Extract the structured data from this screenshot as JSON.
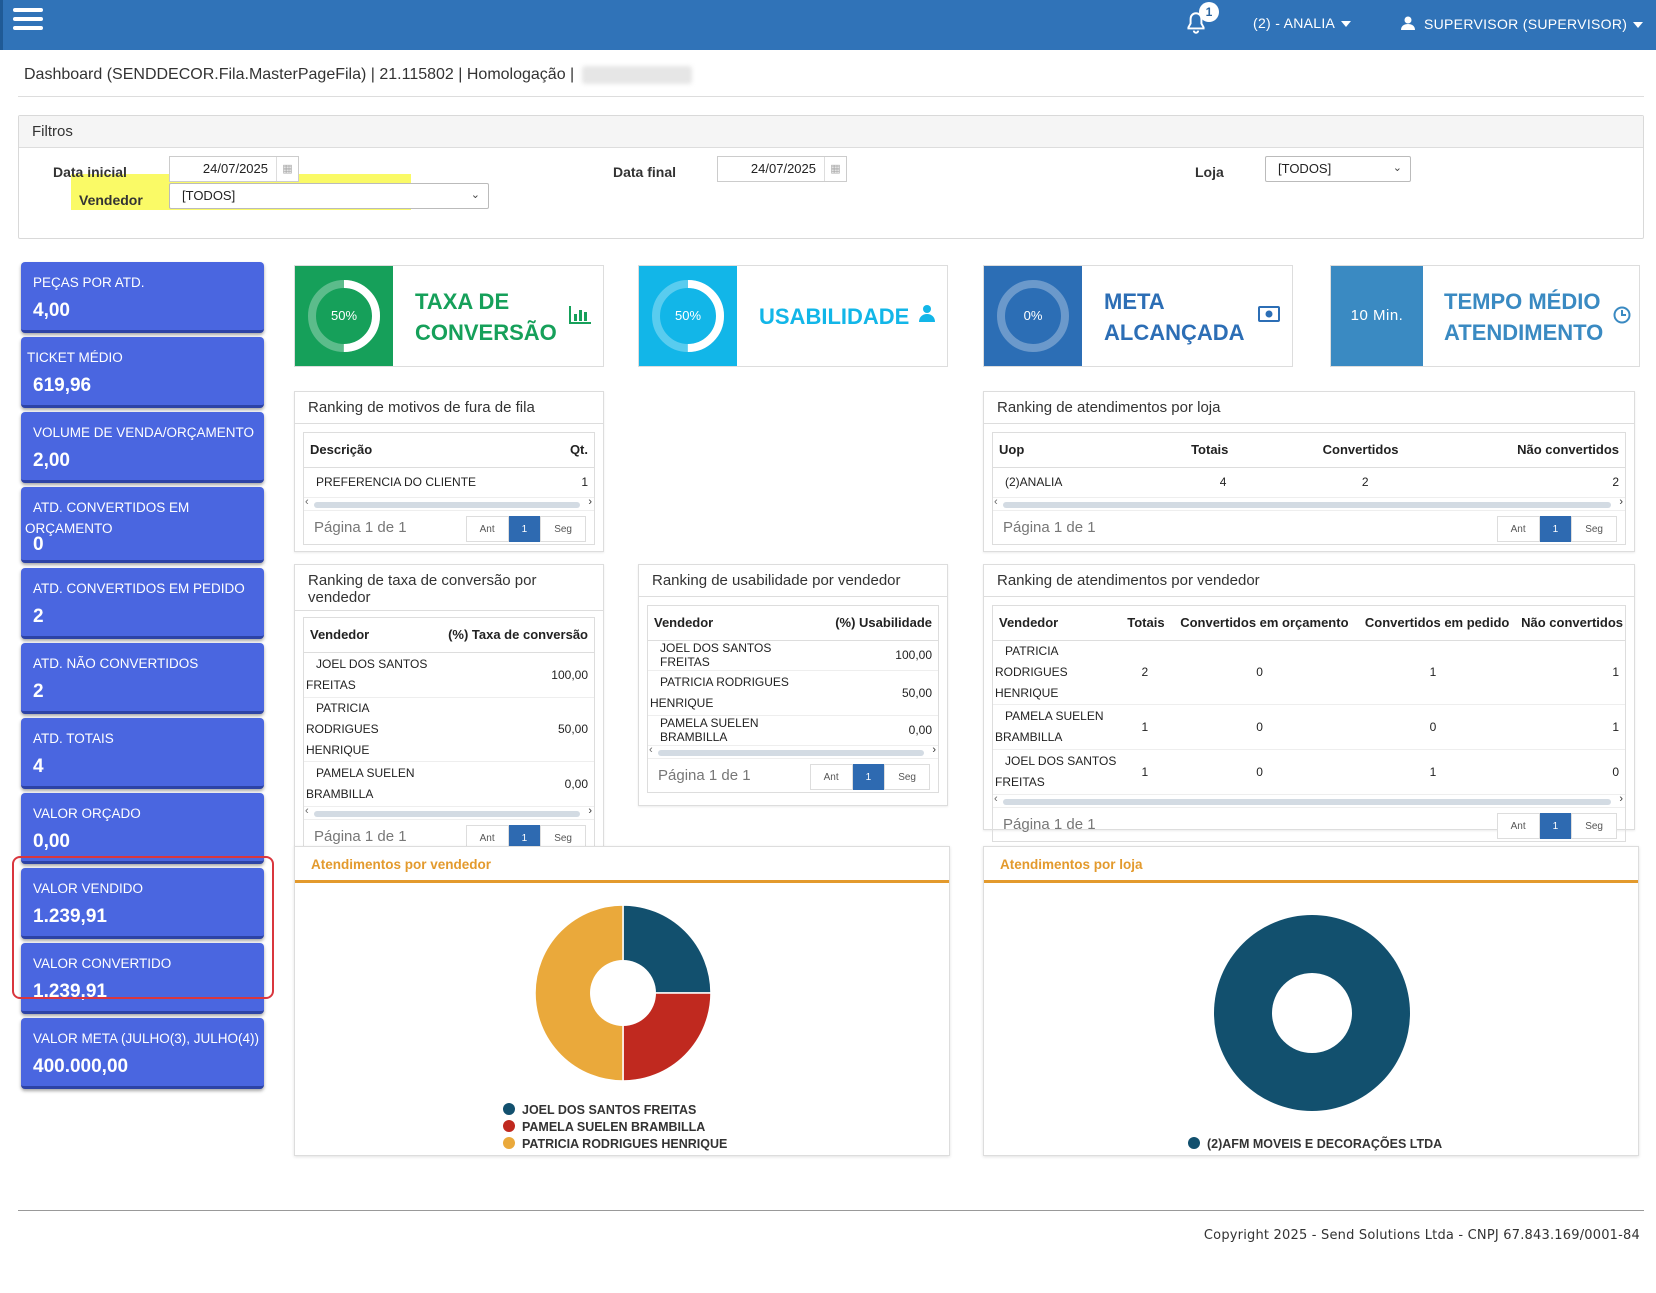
{
  "topbar": {
    "notif_count": "1",
    "store": "(2) - ANALIA",
    "user": "SUPERVISOR (SUPERVISOR)"
  },
  "breadcrumb": "Dashboard (SENDDECOR.Fila.MasterPageFila) | 21.115802 | Homologação |",
  "filters": {
    "title": "Filtros",
    "data_inicial_label": "Data inicial",
    "data_inicial": "24/07/2025",
    "data_final_label": "Data final",
    "data_final": "24/07/2025",
    "loja_label": "Loja",
    "loja": "[TODOS]",
    "vendedor_label": "Vendedor",
    "vendedor": "[TODOS]"
  },
  "kpis": [
    {
      "label": "PEÇAS POR ATD.",
      "value": "4,00"
    },
    {
      "label": "TICKET MÉDIO",
      "value": "619,96"
    },
    {
      "label": "VOLUME DE VENDA/ORÇAMENTO",
      "value": "2,00"
    },
    {
      "label": "ATD. CONVERTIDOS EM ORÇAMENTO",
      "value": "0"
    },
    {
      "label": "ATD. CONVERTIDOS EM PEDIDO",
      "value": "2"
    },
    {
      "label": "ATD. NÃO CONVERTIDOS",
      "value": "2"
    },
    {
      "label": "ATD. TOTAIS",
      "value": "4"
    },
    {
      "label": "VALOR ORÇADO",
      "value": "0,00"
    },
    {
      "label": "VALOR VENDIDO",
      "value": "1.239,91"
    },
    {
      "label": "VALOR CONVERTIDO",
      "value": "1.239,91"
    },
    {
      "label": "VALOR META (JULHO(3), JULHO(4))",
      "value": "400.000,00"
    }
  ],
  "stats": {
    "taxa": {
      "pct": "50%",
      "fill": 0.5,
      "title1": "TAXA DE",
      "title2": "CONVERSÃO",
      "color": "#16a05a"
    },
    "usab": {
      "pct": "50%",
      "fill": 0.5,
      "title1": "USABILIDADE",
      "color": "#12b6e8"
    },
    "meta": {
      "pct": "0%",
      "fill": 0.0,
      "title1": "META",
      "title2": "ALCANÇADA",
      "color": "#2c6eb5"
    },
    "tempo": {
      "value": "10 Min.",
      "title1": "TEMPO MÉDIO",
      "title2": "ATENDIMENTO",
      "color": "#3a8ac2"
    }
  },
  "rank_motivos": {
    "title": "Ranking de motivos de fura de fila",
    "headers": [
      "Descrição",
      "Qt."
    ],
    "rows": [
      [
        "PREFERENCIA DO CLIENTE",
        "1"
      ]
    ],
    "page": "Página 1 de 1"
  },
  "rank_loja": {
    "title": "Ranking de atendimentos por loja",
    "headers": [
      "Uop",
      "Totais",
      "Convertidos",
      "Não convertidos"
    ],
    "rows": [
      [
        "(2)ANALIA",
        "4",
        "2",
        "2"
      ]
    ],
    "page": "Página 1 de 1"
  },
  "rank_taxa": {
    "title": "Ranking de taxa de conversão por vendedor",
    "headers": [
      "Vendedor",
      "(%) Taxa de conversão"
    ],
    "rows": [
      [
        "JOEL DOS SANTOS FREITAS",
        "100,00"
      ],
      [
        "PATRICIA RODRIGUES HENRIQUE",
        "50,00"
      ],
      [
        "PAMELA SUELEN BRAMBILLA",
        "0,00"
      ]
    ],
    "page": "Página 1 de 1"
  },
  "rank_usab": {
    "title": "Ranking de usabilidade por vendedor",
    "headers": [
      "Vendedor",
      "(%) Usabilidade"
    ],
    "rows": [
      [
        "JOEL DOS SANTOS FREITAS",
        "100,00"
      ],
      [
        "PATRICIA RODRIGUES HENRIQUE",
        "50,00"
      ],
      [
        "PAMELA SUELEN BRAMBILLA",
        "0,00"
      ]
    ],
    "page": "Página 1 de 1"
  },
  "rank_vend": {
    "title": "Ranking de atendimentos por vendedor",
    "headers": [
      "Vendedor",
      "Totais",
      "Convertidos em orçamento",
      "Convertidos em pedido",
      "Não convertidos"
    ],
    "rows": [
      [
        "PATRICIA RODRIGUES HENRIQUE",
        "2",
        "0",
        "1",
        "1"
      ],
      [
        "PAMELA SUELEN BRAMBILLA",
        "1",
        "0",
        "0",
        "1"
      ],
      [
        "JOEL DOS SANTOS FREITAS",
        "1",
        "0",
        "1",
        "0"
      ]
    ],
    "page": "Página 1 de 1"
  },
  "pager": {
    "prev": "Ant",
    "current": "1",
    "next": "Seg"
  },
  "chart_data": [
    {
      "type": "pie",
      "title": "Atendimentos por vendedor",
      "categories": [
        "JOEL DOS SANTOS FREITAS",
        "PAMELA SUELEN BRAMBILLA",
        "PATRICIA RODRIGUES HENRIQUE"
      ],
      "values": [
        1,
        1,
        2
      ],
      "colors": [
        "#12506e",
        "#c0291f",
        "#eaa93b"
      ],
      "legend": "bottom"
    },
    {
      "type": "pie",
      "title": "Atendimentos por loja",
      "categories": [
        "(2)AFM MOVEIS E DECORAÇÕES LTDA"
      ],
      "values": [
        4
      ],
      "colors": [
        "#12506e"
      ],
      "legend": "bottom"
    }
  ],
  "footer": "Copyright 2025 - Send Solutions Ltda - CNPJ 67.843.169/0001-84"
}
